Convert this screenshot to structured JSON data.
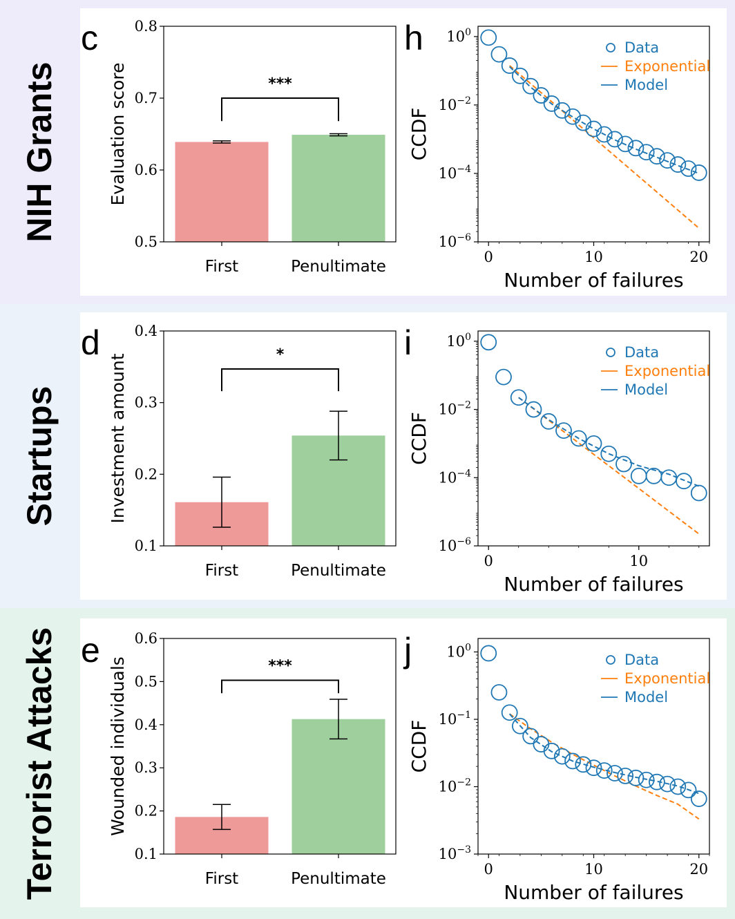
{
  "rows": [
    {
      "label": "NIH Grants",
      "bg": "#EEEBFA"
    },
    {
      "label": "Startups",
      "bg": "#EBF2F9"
    },
    {
      "label": "Terrorist Attacks",
      "bg": "#E4F3EC"
    }
  ],
  "colors": {
    "first_bar": "#EE9A99",
    "penultimate_bar": "#9FCF9C",
    "data": "#1F77B4",
    "exponential": "#FF7F0E",
    "model": "#1F77B4"
  },
  "chart_data": [
    {
      "id": "c",
      "type": "bar",
      "panel_label": "c",
      "title": "",
      "xlabel": "",
      "ylabel": "Evaluation score",
      "categories": [
        "First",
        "Penultimate"
      ],
      "values": [
        0.639,
        0.649
      ],
      "errors": [
        0.0015,
        0.0015
      ],
      "ylim": [
        0.5,
        0.8
      ],
      "yticks": [
        "0.5",
        "0.6",
        "0.7",
        "0.8"
      ],
      "yticks_values": [
        0.5,
        0.6,
        0.7,
        0.8
      ],
      "significance": "***",
      "bracket_y": 0.7,
      "bracket_drop": 0.032
    },
    {
      "id": "h",
      "type": "scatter",
      "panel_label": "h",
      "xlabel": "Number of failures",
      "ylabel": "CCDF",
      "log_y": true,
      "xlim": [
        -1,
        21
      ],
      "ylim_exp": [
        -6,
        0.3
      ],
      "xticks": [
        0,
        10,
        20
      ],
      "yticks_exp": [
        0,
        -2,
        -4,
        -6
      ],
      "ytick_base": "10",
      "legend": [
        "Data",
        "Exponential",
        "Model"
      ],
      "legend_position": "top-right",
      "data_x": [
        0,
        1,
        2,
        3,
        4,
        5,
        6,
        7,
        8,
        9,
        10,
        11,
        12,
        13,
        14,
        15,
        16,
        17,
        18,
        19,
        20
      ],
      "data_y": [
        -0.03,
        -0.52,
        -0.85,
        -1.15,
        -1.45,
        -1.72,
        -1.96,
        -2.16,
        -2.34,
        -2.52,
        -2.7,
        -2.86,
        -3.0,
        -3.14,
        -3.26,
        -3.38,
        -3.5,
        -3.62,
        -3.74,
        -3.86,
        -3.98
      ],
      "exponential": [
        [
          2,
          -0.85
        ],
        [
          20,
          -5.6
        ]
      ],
      "model_x": [
        2,
        4,
        6,
        8,
        10,
        12,
        14,
        16,
        18,
        20
      ],
      "model_y": [
        -0.88,
        -1.48,
        -1.97,
        -2.35,
        -2.7,
        -3.02,
        -3.29,
        -3.53,
        -3.77,
        -4.0
      ]
    },
    {
      "id": "d",
      "type": "bar",
      "panel_label": "d",
      "title": "",
      "xlabel": "",
      "ylabel": "Investment amount",
      "categories": [
        "First",
        "Penultimate"
      ],
      "values": [
        0.161,
        0.254
      ],
      "errors": [
        0.035,
        0.034
      ],
      "ylim": [
        0.1,
        0.4
      ],
      "yticks": [
        "0.1",
        "0.2",
        "0.3",
        "0.4"
      ],
      "yticks_values": [
        0.1,
        0.2,
        0.3,
        0.4
      ],
      "significance": "*",
      "bracket_y": 0.347,
      "bracket_drop": 0.031
    },
    {
      "id": "i",
      "type": "scatter",
      "panel_label": "i",
      "xlabel": "Number of failures",
      "ylabel": "CCDF",
      "log_y": true,
      "xlim": [
        -0.7,
        14.7
      ],
      "ylim_exp": [
        -6,
        0.3
      ],
      "xticks": [
        0,
        10
      ],
      "yticks_exp": [
        0,
        -2,
        -4,
        -6
      ],
      "ytick_base": "10",
      "legend": [
        "Data",
        "Exponential",
        "Model"
      ],
      "legend_position": "top-right",
      "data_x": [
        0,
        1,
        2,
        3,
        4,
        5,
        6,
        7,
        8,
        9,
        10,
        11,
        12,
        13,
        14
      ],
      "data_y": [
        -0.03,
        -1.05,
        -1.65,
        -2.0,
        -2.35,
        -2.62,
        -2.85,
        -3.0,
        -3.3,
        -3.6,
        -3.95,
        -3.95,
        -4.0,
        -4.1,
        -4.45
      ],
      "exponential": [
        [
          2,
          -1.65
        ],
        [
          14,
          -5.65
        ]
      ],
      "model_x": [
        2,
        4,
        6,
        8,
        10,
        12,
        14
      ],
      "model_y": [
        -1.65,
        -2.3,
        -2.85,
        -3.3,
        -3.65,
        -3.9,
        -4.25
      ]
    },
    {
      "id": "e",
      "type": "bar",
      "panel_label": "e",
      "title": "",
      "xlabel": "",
      "ylabel": "Wounded individuals",
      "categories": [
        "First",
        "Penultimate"
      ],
      "values": [
        0.186,
        0.413
      ],
      "errors": [
        0.029,
        0.046
      ],
      "ylim": [
        0.1,
        0.6
      ],
      "yticks": [
        "0.1",
        "0.2",
        "0.3",
        "0.4",
        "0.5",
        "0.6"
      ],
      "yticks_values": [
        0.1,
        0.2,
        0.3,
        0.4,
        0.5,
        0.6
      ],
      "significance": "***",
      "bracket_y": 0.503,
      "bracket_drop": 0.03
    },
    {
      "id": "j",
      "type": "scatter",
      "panel_label": "j",
      "xlabel": "Number of failures",
      "ylabel": "CCDF",
      "log_y": true,
      "xlim": [
        -1,
        21
      ],
      "ylim_exp": [
        -3,
        0.2
      ],
      "xticks": [
        0,
        10,
        20
      ],
      "yticks_exp": [
        0,
        -1,
        -2,
        -3
      ],
      "ytick_base": "10",
      "legend": [
        "Data",
        "Exponential",
        "Model"
      ],
      "legend_position": "top-right",
      "data_x": [
        0,
        1,
        2,
        3,
        4,
        5,
        6,
        7,
        8,
        9,
        10,
        11,
        12,
        13,
        14,
        15,
        16,
        17,
        18,
        19,
        20
      ],
      "data_y": [
        -0.02,
        -0.6,
        -0.9,
        -1.1,
        -1.25,
        -1.37,
        -1.47,
        -1.55,
        -1.62,
        -1.67,
        -1.72,
        -1.76,
        -1.8,
        -1.84,
        -1.87,
        -1.9,
        -1.93,
        -1.96,
        -2.0,
        -2.05,
        -2.18
      ],
      "exponential": [
        [
          2,
          -0.92
        ],
        [
          4,
          -1.14
        ],
        [
          6,
          -1.34
        ],
        [
          8,
          -1.52
        ],
        [
          10,
          -1.68
        ],
        [
          12,
          -1.84
        ],
        [
          14,
          -1.99
        ],
        [
          16,
          -2.13
        ],
        [
          18,
          -2.26
        ],
        [
          20,
          -2.48
        ]
      ],
      "model_x": [
        2,
        4,
        6,
        8,
        10,
        12,
        14,
        16,
        18,
        20
      ],
      "model_y": [
        -0.92,
        -1.27,
        -1.48,
        -1.62,
        -1.71,
        -1.79,
        -1.86,
        -1.92,
        -1.99,
        -2.1
      ]
    }
  ]
}
